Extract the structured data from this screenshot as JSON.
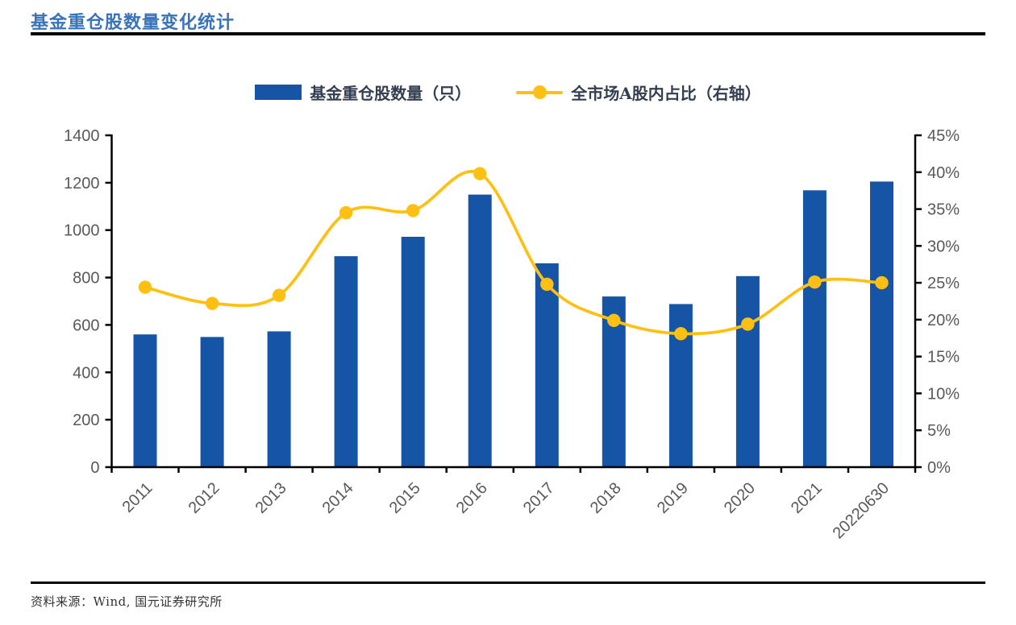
{
  "header": {
    "title": "基金重仓股数量变化统计"
  },
  "legend": {
    "bar_label": "基金重仓股数量（只）",
    "line_label": "全市场A股内占比（右轴）"
  },
  "footer": {
    "source": "资料来源：Wind, 国元证券研究所"
  },
  "colors": {
    "bar": "#1655A6",
    "line": "#FFC013",
    "title": "#3973B9",
    "legend_text": "#333F50",
    "axis_text": "#595959",
    "axis_line": "#000000"
  },
  "chart_data": {
    "type": "bar",
    "subtype": "bar-line-combo",
    "title": "基金重仓股数量变化统计",
    "categories": [
      "2011",
      "2012",
      "2013",
      "2014",
      "2015",
      "2016",
      "2017",
      "2018",
      "2019",
      "2020",
      "2021",
      "20220630"
    ],
    "series": [
      {
        "name": "基金重仓股数量（只）",
        "type": "bar",
        "axis": "left",
        "values": [
          560,
          549,
          573,
          890,
          972,
          1150,
          860,
          720,
          688,
          806,
          1168,
          1205
        ]
      },
      {
        "name": "全市场A股内占比（右轴）",
        "type": "line",
        "axis": "right",
        "unit": "%",
        "values": [
          24.4,
          22.2,
          23.3,
          34.5,
          34.8,
          39.8,
          24.8,
          19.9,
          18.1,
          19.4,
          25.1,
          25.0
        ]
      }
    ],
    "left_axis": {
      "min": 0,
      "max": 1400,
      "step": 200,
      "tick_labels": [
        "0",
        "200",
        "400",
        "600",
        "800",
        "1000",
        "1200",
        "1400"
      ]
    },
    "right_axis": {
      "min": 0,
      "max": 45,
      "step": 5,
      "tick_labels": [
        "0%",
        "5%",
        "10%",
        "15%",
        "20%",
        "25%",
        "30%",
        "35%",
        "40%",
        "45%"
      ]
    },
    "legend_position": "top",
    "grid": false,
    "x_label_rotation": -45
  }
}
